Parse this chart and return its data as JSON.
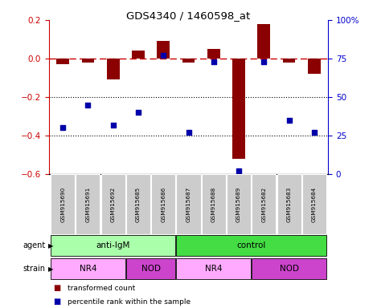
{
  "title": "GDS4340 / 1460598_at",
  "samples": [
    "GSM915690",
    "GSM915691",
    "GSM915692",
    "GSM915685",
    "GSM915686",
    "GSM915687",
    "GSM915688",
    "GSM915689",
    "GSM915682",
    "GSM915683",
    "GSM915684"
  ],
  "red_values": [
    -0.03,
    -0.02,
    -0.11,
    0.04,
    0.09,
    -0.02,
    0.05,
    -0.52,
    0.18,
    -0.02,
    -0.08
  ],
  "blue_values_pct": [
    30,
    45,
    32,
    40,
    77,
    27,
    73,
    2,
    73,
    35,
    27
  ],
  "ylim_left": [
    -0.6,
    0.2
  ],
  "ylim_right": [
    0,
    100
  ],
  "yticks_left": [
    -0.6,
    -0.4,
    -0.2,
    0.0,
    0.2
  ],
  "yticks_right": [
    0,
    25,
    50,
    75,
    100
  ],
  "ytick_labels_right": [
    "0",
    "25",
    "50",
    "75",
    "100%"
  ],
  "bar_color": "#8B0000",
  "dot_color": "#0000AA",
  "dashed_line_color": "#cc0000",
  "grid_line_color": "#000000",
  "agent_labels": [
    {
      "text": "anti-IgM",
      "start": 0,
      "end": 4,
      "color": "#AAFFAA"
    },
    {
      "text": "control",
      "start": 5,
      "end": 10,
      "color": "#44DD44"
    }
  ],
  "strain_labels": [
    {
      "text": "NR4",
      "start": 0,
      "end": 2,
      "color": "#FFAAFF"
    },
    {
      "text": "NOD",
      "start": 3,
      "end": 4,
      "color": "#CC44CC"
    },
    {
      "text": "NR4",
      "start": 5,
      "end": 7,
      "color": "#FFAAFF"
    },
    {
      "text": "NOD",
      "start": 8,
      "end": 10,
      "color": "#CC44CC"
    }
  ],
  "legend_red_label": "transformed count",
  "legend_blue_label": "percentile rank within the sample",
  "left_tick_color": "#cc0000",
  "right_tick_color": "#0000cc",
  "tick_bg_color": "#cccccc",
  "fig_width": 4.69,
  "fig_height": 3.84,
  "dpi": 100
}
